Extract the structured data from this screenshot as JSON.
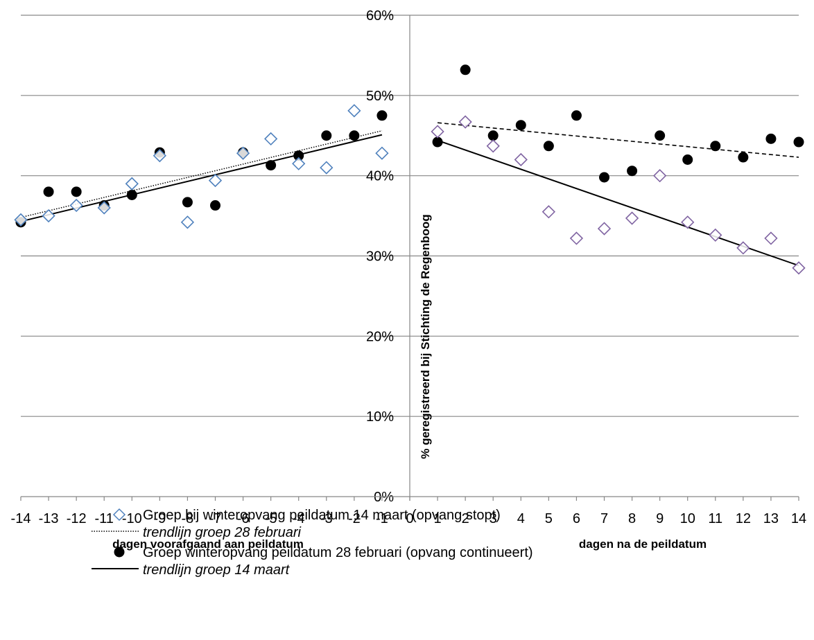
{
  "chart_data": {
    "type": "scatter",
    "ylabel": "% geregistreerd bij Stichting de Regenboog",
    "xlabel_left": "dagen voorafgaand aan peildatum",
    "xlabel_right": "dagen na de peildatum",
    "ylim": [
      0,
      0.6
    ],
    "y_ticks": [
      "0%",
      "10%",
      "20%",
      "30%",
      "40%",
      "50%",
      "60%"
    ],
    "y_tick_values": [
      0,
      0.1,
      0.2,
      0.3,
      0.4,
      0.5,
      0.6
    ],
    "x_ticks": [
      "-14",
      "-13",
      "-12",
      "-11",
      "-10",
      "-9",
      "-8",
      "-7",
      "-6",
      "-5",
      "-4",
      "-3",
      "-2",
      "-1",
      "0",
      "1",
      "2",
      "3",
      "4",
      "5",
      "6",
      "7",
      "8",
      "9",
      "10",
      "11",
      "12",
      "13",
      "14"
    ],
    "x_tick_values": [
      -14,
      -13,
      -12,
      -11,
      -10,
      -9,
      -8,
      -7,
      -6,
      -5,
      -4,
      -3,
      -2,
      -1,
      0,
      1,
      2,
      3,
      4,
      5,
      6,
      7,
      8,
      9,
      10,
      11,
      12,
      13,
      14
    ],
    "grid": "horizontal",
    "legend_position": "bottom",
    "series": [
      {
        "name": "Groep bij winteropvang peildatum 14 maart (opvang stopt)",
        "marker": "diamond-open",
        "color": "#4f81bd",
        "color_after": "#8064a2",
        "points": [
          [
            -14,
            0.345
          ],
          [
            -13,
            0.35
          ],
          [
            -12,
            0.363
          ],
          [
            -11,
            0.36
          ],
          [
            -10,
            0.39
          ],
          [
            -9,
            0.425
          ],
          [
            -8,
            0.342
          ],
          [
            -7,
            0.394
          ],
          [
            -6,
            0.428
          ],
          [
            -5,
            0.446
          ],
          [
            -4,
            0.415
          ],
          [
            -3,
            0.41
          ],
          [
            -2,
            0.481
          ],
          [
            -1,
            0.428
          ],
          [
            1,
            0.455
          ],
          [
            2,
            0.467
          ],
          [
            3,
            0.437
          ],
          [
            4,
            0.42
          ],
          [
            5,
            0.355
          ],
          [
            6,
            0.322
          ],
          [
            7,
            0.334
          ],
          [
            8,
            0.347
          ],
          [
            9,
            0.4
          ],
          [
            10,
            0.342
          ],
          [
            11,
            0.326
          ],
          [
            12,
            0.31
          ],
          [
            13,
            0.322
          ],
          [
            14,
            0.285
          ]
        ]
      },
      {
        "name": "Groep winteropvang peildatum 28 februari (opvang continueert)",
        "marker": "circle-filled",
        "color": "#000000",
        "points": [
          [
            -14,
            0.342
          ],
          [
            -13,
            0.38
          ],
          [
            -12,
            0.38
          ],
          [
            -11,
            0.363
          ],
          [
            -10,
            0.376
          ],
          [
            -9,
            0.429
          ],
          [
            -8,
            0.367
          ],
          [
            -7,
            0.363
          ],
          [
            -6,
            0.429
          ],
          [
            -5,
            0.413
          ],
          [
            -4,
            0.425
          ],
          [
            -3,
            0.45
          ],
          [
            -2,
            0.45
          ],
          [
            -1,
            0.475
          ],
          [
            1,
            0.442
          ],
          [
            2,
            0.532
          ],
          [
            3,
            0.45
          ],
          [
            4,
            0.463
          ],
          [
            5,
            0.437
          ],
          [
            6,
            0.475
          ],
          [
            7,
            0.398
          ],
          [
            8,
            0.406
          ],
          [
            9,
            0.45
          ],
          [
            10,
            0.42
          ],
          [
            11,
            0.437
          ],
          [
            12,
            0.423
          ],
          [
            13,
            0.446
          ],
          [
            14,
            0.442
          ]
        ]
      }
    ],
    "trendlines": [
      {
        "name": "trendlijn groep 28 februari",
        "style": "dotted",
        "segments": [
          {
            "x": [
              -14,
              -1
            ],
            "y": [
              0.348,
              0.456
            ]
          },
          {
            "x": [
              1,
              14
            ],
            "y": [
              0.466,
              0.423
            ]
          }
        ]
      },
      {
        "name": "trendlijn groep 14 maart",
        "style": "solid",
        "segments": [
          {
            "x": [
              -14,
              -1
            ],
            "y": [
              0.343,
              0.451
            ]
          },
          {
            "x": [
              1,
              14
            ],
            "y": [
              0.444,
              0.288
            ]
          }
        ]
      }
    ]
  },
  "legend": {
    "items": [
      {
        "label": "Groep bij winteropvang peildatum 14 maart (opvang stopt)",
        "swatch": "diamond"
      },
      {
        "label": "trendlijn groep 28 februari",
        "swatch": "dotted-line"
      },
      {
        "label": "Groep winteropvang peildatum 28 februari (opvang continueert)",
        "swatch": "circle"
      },
      {
        "label": "trendlijn groep 14 maart",
        "swatch": "solid-line"
      }
    ]
  }
}
